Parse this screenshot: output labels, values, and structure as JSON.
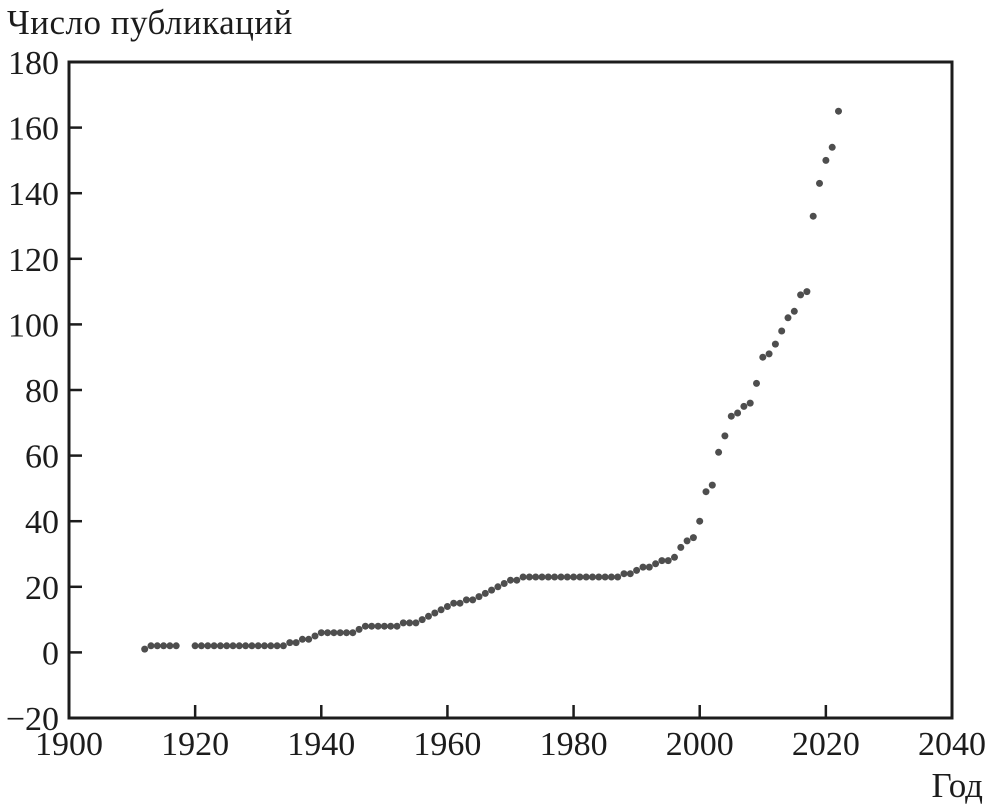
{
  "chart_data": {
    "type": "scatter",
    "title": "Число публикаций",
    "xlabel": "Год",
    "ylabel": "",
    "legend": "none",
    "grid": false,
    "frame_color": "#1c1c1c",
    "marker": {
      "shape": "circle",
      "color": "#4e4e4e",
      "radius_px": 3.5
    },
    "x_axis": {
      "min": 1900,
      "max": 2040,
      "tick_step": 20,
      "ticks": [
        1900,
        1920,
        1940,
        1960,
        1980,
        2000,
        2020,
        2040
      ]
    },
    "y_axis": {
      "min": -20,
      "max": 180,
      "tick_step": 20,
      "ticks": [
        -20,
        0,
        20,
        40,
        60,
        80,
        100,
        120,
        140,
        160,
        180
      ]
    },
    "points": [
      [
        1912,
        1
      ],
      [
        1913,
        2
      ],
      [
        1914,
        2
      ],
      [
        1915,
        2
      ],
      [
        1916,
        2
      ],
      [
        1917,
        2
      ],
      [
        1920,
        2
      ],
      [
        1921,
        2
      ],
      [
        1922,
        2
      ],
      [
        1923,
        2
      ],
      [
        1924,
        2
      ],
      [
        1925,
        2
      ],
      [
        1926,
        2
      ],
      [
        1927,
        2
      ],
      [
        1928,
        2
      ],
      [
        1929,
        2
      ],
      [
        1930,
        2
      ],
      [
        1931,
        2
      ],
      [
        1932,
        2
      ],
      [
        1933,
        2
      ],
      [
        1934,
        2
      ],
      [
        1935,
        3
      ],
      [
        1936,
        3
      ],
      [
        1937,
        4
      ],
      [
        1938,
        4
      ],
      [
        1939,
        5
      ],
      [
        1940,
        6
      ],
      [
        1941,
        6
      ],
      [
        1942,
        6
      ],
      [
        1943,
        6
      ],
      [
        1944,
        6
      ],
      [
        1945,
        6
      ],
      [
        1946,
        7
      ],
      [
        1947,
        8
      ],
      [
        1948,
        8
      ],
      [
        1949,
        8
      ],
      [
        1950,
        8
      ],
      [
        1951,
        8
      ],
      [
        1952,
        8
      ],
      [
        1953,
        9
      ],
      [
        1954,
        9
      ],
      [
        1955,
        9
      ],
      [
        1956,
        10
      ],
      [
        1957,
        11
      ],
      [
        1958,
        12
      ],
      [
        1959,
        13
      ],
      [
        1960,
        14
      ],
      [
        1961,
        15
      ],
      [
        1962,
        15
      ],
      [
        1963,
        16
      ],
      [
        1964,
        16
      ],
      [
        1965,
        17
      ],
      [
        1966,
        18
      ],
      [
        1967,
        19
      ],
      [
        1968,
        20
      ],
      [
        1969,
        21
      ],
      [
        1970,
        22
      ],
      [
        1971,
        22
      ],
      [
        1972,
        23
      ],
      [
        1973,
        23
      ],
      [
        1974,
        23
      ],
      [
        1975,
        23
      ],
      [
        1976,
        23
      ],
      [
        1977,
        23
      ],
      [
        1978,
        23
      ],
      [
        1979,
        23
      ],
      [
        1980,
        23
      ],
      [
        1981,
        23
      ],
      [
        1982,
        23
      ],
      [
        1983,
        23
      ],
      [
        1984,
        23
      ],
      [
        1985,
        23
      ],
      [
        1986,
        23
      ],
      [
        1987,
        23
      ],
      [
        1988,
        24
      ],
      [
        1989,
        24
      ],
      [
        1990,
        25
      ],
      [
        1991,
        26
      ],
      [
        1992,
        26
      ],
      [
        1993,
        27
      ],
      [
        1994,
        28
      ],
      [
        1995,
        28
      ],
      [
        1996,
        29
      ],
      [
        1997,
        32
      ],
      [
        1998,
        34
      ],
      [
        1999,
        35
      ],
      [
        2000,
        40
      ],
      [
        2001,
        49
      ],
      [
        2002,
        51
      ],
      [
        2003,
        61
      ],
      [
        2004,
        66
      ],
      [
        2005,
        72
      ],
      [
        2006,
        73
      ],
      [
        2007,
        75
      ],
      [
        2008,
        76
      ],
      [
        2009,
        82
      ],
      [
        2010,
        90
      ],
      [
        2011,
        91
      ],
      [
        2012,
        94
      ],
      [
        2013,
        98
      ],
      [
        2014,
        102
      ],
      [
        2015,
        104
      ],
      [
        2016,
        109
      ],
      [
        2017,
        110
      ],
      [
        2018,
        133
      ],
      [
        2019,
        143
      ],
      [
        2020,
        150
      ],
      [
        2021,
        154
      ],
      [
        2022,
        165
      ]
    ]
  }
}
